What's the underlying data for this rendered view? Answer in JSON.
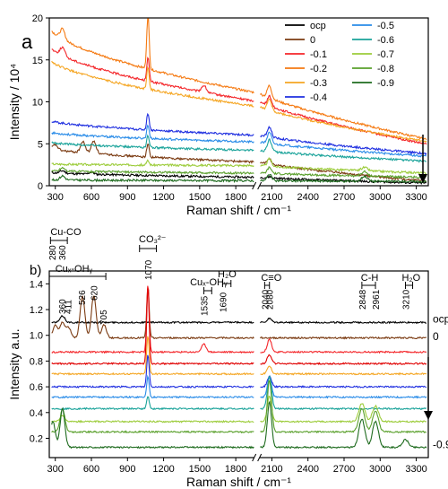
{
  "colors": {
    "ocp": "#000000",
    "0": "#7b3b12",
    "-0.1": "#f4262a",
    "-0.2": "#f57a12",
    "-0.3": "#f5a623",
    "-0.4": "#1f2fe0",
    "-0.5": "#2a8ce8",
    "-0.6": "#1aa39a",
    "-0.7": "#9ccc3a",
    "-0.8": "#5aa02c",
    "-0.9": "#1e6b1e",
    "co3": "#e00000"
  },
  "chart_data": [
    {
      "type": "line",
      "panel": "a",
      "xlabel": "Raman shift / cm⁻¹",
      "ylabel": "Intensity / 10⁴",
      "xlim": [
        250,
        3400
      ],
      "ylim": [
        0,
        20
      ],
      "x_break": [
        1950,
        2000
      ],
      "xticks": [
        300,
        600,
        900,
        1200,
        1500,
        1800,
        2100,
        2400,
        2700,
        3000,
        3300
      ],
      "yticks": [
        0,
        5,
        10,
        15,
        20
      ],
      "legend": [
        "ocp",
        "0",
        "-0.1",
        "-0.2",
        "-0.3",
        "-0.4",
        "-0.5",
        "-0.6",
        "-0.7",
        "-0.8",
        "-0.9"
      ],
      "series": [
        {
          "name": "ocp",
          "baseline_start": 1.6,
          "baseline_mid": 1.0,
          "baseline_end": 0.3,
          "peaks": [
            [
              360,
              0.3
            ],
            [
              600,
              0.25
            ],
            [
              2080,
              0.15
            ]
          ]
        },
        {
          "name": "0",
          "baseline_start": 4.5,
          "baseline_mid": 2.8,
          "baseline_end": 0.5,
          "peaks": [
            [
              300,
              0.6
            ],
            [
              530,
              1.3
            ],
            [
              620,
              1.5
            ],
            [
              1070,
              1.6
            ],
            [
              2080,
              0.6
            ]
          ]
        },
        {
          "name": "-0.1",
          "baseline_start": 16.8,
          "baseline_mid": 10.0,
          "baseline_end": 4.9,
          "peaks": [
            [
              360,
              1.0
            ],
            [
              1070,
              2.8
            ],
            [
              1535,
              0.8
            ],
            [
              2080,
              1.2
            ]
          ]
        },
        {
          "name": "-0.2",
          "baseline_start": 19.0,
          "baseline_mid": 11.0,
          "baseline_end": 5.5,
          "peaks": [
            [
              360,
              1.2
            ],
            [
              1070,
              6.5
            ],
            [
              2080,
              1.5
            ]
          ]
        },
        {
          "name": "-0.3",
          "baseline_start": 15.2,
          "baseline_mid": 9.4,
          "baseline_end": 5.2,
          "peaks": [
            [
              1070,
              2.5
            ],
            [
              2080,
              1.3
            ]
          ]
        },
        {
          "name": "-0.4",
          "baseline_start": 7.8,
          "baseline_mid": 6.0,
          "baseline_end": 3.8,
          "peaks": [
            [
              1070,
              2.0
            ],
            [
              2080,
              1.2
            ]
          ]
        },
        {
          "name": "-0.5",
          "baseline_start": 6.4,
          "baseline_mid": 5.2,
          "baseline_end": 3.5,
          "peaks": [
            [
              1070,
              1.6
            ],
            [
              2080,
              1.3
            ]
          ]
        },
        {
          "name": "-0.6",
          "baseline_start": 5.2,
          "baseline_mid": 4.2,
          "baseline_end": 2.9,
          "peaks": [
            [
              1070,
              1.4
            ],
            [
              2080,
              1.4
            ]
          ]
        },
        {
          "name": "-0.7",
          "baseline_start": 2.6,
          "baseline_mid": 2.4,
          "baseline_end": 1.5,
          "peaks": [
            [
              1070,
              0.5
            ],
            [
              2080,
              0.9
            ],
            [
              2870,
              0.4
            ]
          ]
        },
        {
          "name": "-0.8",
          "baseline_start": 1.8,
          "baseline_mid": 1.5,
          "baseline_end": 1.0,
          "peaks": [
            [
              360,
              0.4
            ],
            [
              2080,
              0.7
            ],
            [
              2870,
              0.5
            ]
          ]
        },
        {
          "name": "-0.9",
          "baseline_start": 0.7,
          "baseline_mid": 0.6,
          "baseline_end": 0.5,
          "peaks": [
            [
              360,
              0.5
            ],
            [
              2080,
              0.8
            ],
            [
              2870,
              0.6
            ]
          ]
        }
      ]
    },
    {
      "type": "line",
      "panel": "b)",
      "xlabel": "Raman shift / cm⁻¹",
      "ylabel": "Intensity a.u.",
      "xlim": [
        250,
        3400
      ],
      "ylim": [
        0.05,
        1.5
      ],
      "x_break": [
        1950,
        2000
      ],
      "xticks": [
        300,
        600,
        900,
        1200,
        1500,
        1800,
        2100,
        2400,
        2700,
        3000,
        3300
      ],
      "yticks": [
        0.2,
        0.4,
        0.6,
        0.8,
        1.0,
        1.2,
        1.4
      ],
      "right_labels": {
        "ocp": "ocp",
        "0": "0",
        "-0.9": "-0.9"
      },
      "series": [
        {
          "name": "ocp",
          "offset": 1.1,
          "peaks": [
            [
              360,
              0.05
            ],
            [
              2080,
              0.03
            ]
          ]
        },
        {
          "name": "0",
          "offset": 0.98,
          "peaks": [
            [
              300,
              0.1
            ],
            [
              360,
              0.12
            ],
            [
              411,
              0.08
            ],
            [
              526,
              0.32
            ],
            [
              620,
              0.33
            ],
            [
              705,
              0.1
            ],
            [
              1070,
              0.4
            ]
          ]
        },
        {
          "name": "-0.1",
          "offset": 0.87,
          "peaks": [
            [
              1070,
              0.52
            ],
            [
              1535,
              0.06
            ],
            [
              2080,
              0.1
            ]
          ]
        },
        {
          "name": "-0.2",
          "offset": 0.78,
          "peaks": [
            [
              1070,
              0.6
            ],
            [
              2080,
              0.07
            ]
          ]
        },
        {
          "name": "-0.3",
          "offset": 0.7,
          "peaks": [
            [
              1070,
              0.3
            ],
            [
              2080,
              0.06
            ]
          ]
        },
        {
          "name": "-0.4",
          "offset": 0.6,
          "peaks": [
            [
              1070,
              0.25
            ],
            [
              2080,
              0.08
            ]
          ]
        },
        {
          "name": "-0.5",
          "offset": 0.52,
          "peaks": [
            [
              1070,
              0.16
            ],
            [
              2080,
              0.15
            ]
          ]
        },
        {
          "name": "-0.6",
          "offset": 0.43,
          "peaks": [
            [
              1070,
              0.1
            ],
            [
              2080,
              0.25
            ]
          ]
        },
        {
          "name": "-0.7",
          "offset": 0.33,
          "peaks": [
            [
              360,
              0.05
            ],
            [
              2080,
              0.2
            ],
            [
              2848,
              0.14
            ],
            [
              2961,
              0.12
            ]
          ]
        },
        {
          "name": "-0.8",
          "offset": 0.25,
          "peaks": [
            [
              360,
              0.18
            ],
            [
              2080,
              0.4
            ],
            [
              2848,
              0.18
            ],
            [
              2961,
              0.16
            ]
          ]
        },
        {
          "name": "-0.9",
          "offset": 0.13,
          "peaks": [
            [
              280,
              0.2
            ],
            [
              360,
              0.3
            ],
            [
              2080,
              0.35
            ],
            [
              2848,
              0.22
            ],
            [
              2961,
              0.2
            ],
            [
              3210,
              0.06
            ]
          ]
        }
      ],
      "annotations": [
        {
          "label": "Cu-CO",
          "x1": 260,
          "x2": 400
        },
        {
          "label": "280",
          "x": 280
        },
        {
          "label": "360",
          "x": 360
        },
        {
          "label": "Cuₓ-OHᵧ",
          "x1": 250,
          "x2": 720
        },
        {
          "label": "360",
          "x": 360
        },
        {
          "label": "411",
          "x": 411
        },
        {
          "label": "526",
          "x": 526
        },
        {
          "label": "620",
          "x": 620
        },
        {
          "label": "705",
          "x": 705
        },
        {
          "label": "CO₃²⁻",
          "x1": 1000,
          "x2": 1140
        },
        {
          "label": "1070",
          "x": 1070
        },
        {
          "label": "Cuₓ-OHᵧ",
          "x1": 1535,
          "x2": 1600
        },
        {
          "label": "1535",
          "x": 1535
        },
        {
          "label": "H₂O",
          "x1": 1690,
          "x2": 1760
        },
        {
          "label": "1690",
          "x": 1690
        },
        {
          "label": "C≡O",
          "x1": 2040,
          "x2": 2080
        },
        {
          "label": "2040",
          "x": 2040
        },
        {
          "label": "2080",
          "x": 2080
        },
        {
          "label": "C-H",
          "x1": 2848,
          "x2": 2961
        },
        {
          "label": "2848",
          "x": 2848
        },
        {
          "label": "2961",
          "x": 2961
        },
        {
          "label": "H₂O",
          "x1": 3210,
          "x2": 3270
        },
        {
          "label": "3210",
          "x": 3210
        }
      ]
    }
  ]
}
